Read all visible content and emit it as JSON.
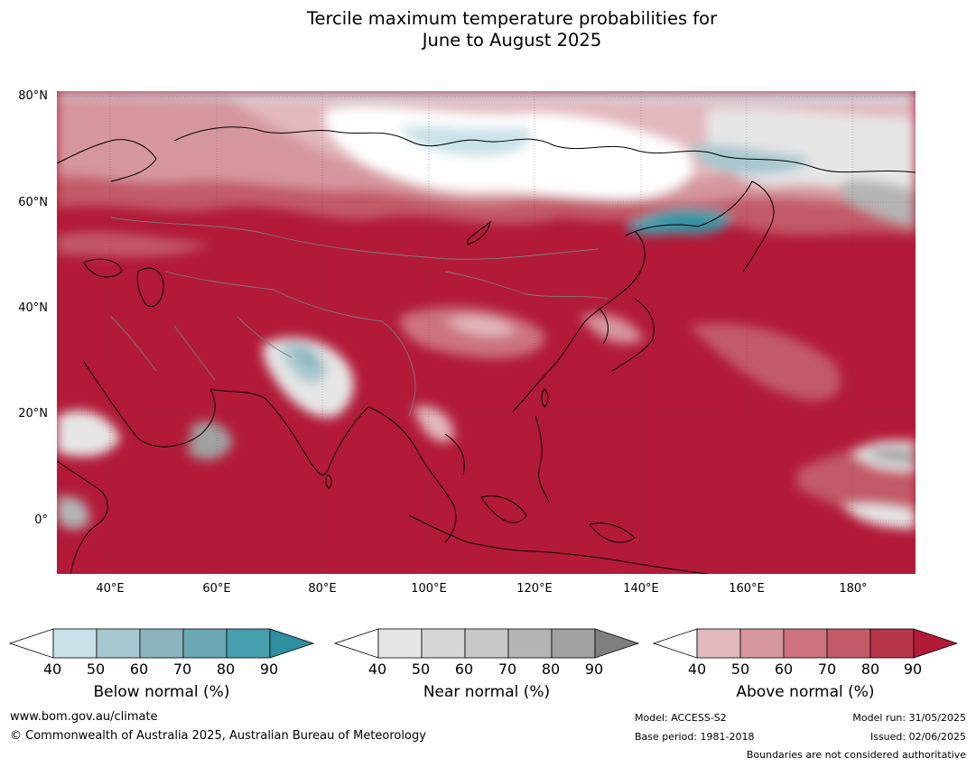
{
  "title_line1": "Tercile maximum temperature probabilities for",
  "title_line2": "June to August 2025",
  "lat_labels": [
    "80°N",
    "60°N",
    "40°N",
    "20°N",
    "0°"
  ],
  "lon_labels": [
    "40°E",
    "60°E",
    "80°E",
    "100°E",
    "120°E",
    "140°E",
    "160°E",
    "180°"
  ],
  "colorbars": [
    {
      "label": "Below normal (%)",
      "ticks": [
        "40",
        "50",
        "60",
        "70",
        "80",
        "90"
      ],
      "colors": [
        "#c9e2e8",
        "#a7c8cf",
        "#8ab3bd",
        "#6aa8b4",
        "#459fad"
      ],
      "extend": "#2f8ea0"
    },
    {
      "label": "Near normal (%)",
      "ticks": [
        "40",
        "50",
        "60",
        "70",
        "80",
        "90"
      ],
      "colors": [
        "#e6e6e6",
        "#d6d6d6",
        "#c8c8c8",
        "#b4b4b4",
        "#a1a1a1"
      ],
      "extend": "#7f7f7f"
    },
    {
      "label": "Above normal (%)",
      "ticks": [
        "40",
        "50",
        "60",
        "70",
        "80",
        "90"
      ],
      "colors": [
        "#e2b8bd",
        "#d6969e",
        "#cc737e",
        "#c25a67",
        "#b8364a"
      ],
      "extend": "#b21a38"
    }
  ],
  "footer": {
    "url": "www.bom.gov.au/climate",
    "copyright": "© Commonwealth of Australia 2025, Australian Bureau of Meteorology",
    "model": "Model: ACCESS-S2",
    "base_period": "Base period: 1981-2018",
    "model_run": "Model run: 31/05/2025",
    "issued": "Issued: 02/06/2025",
    "disclaimer": "Boundaries are not considered authoritative"
  }
}
